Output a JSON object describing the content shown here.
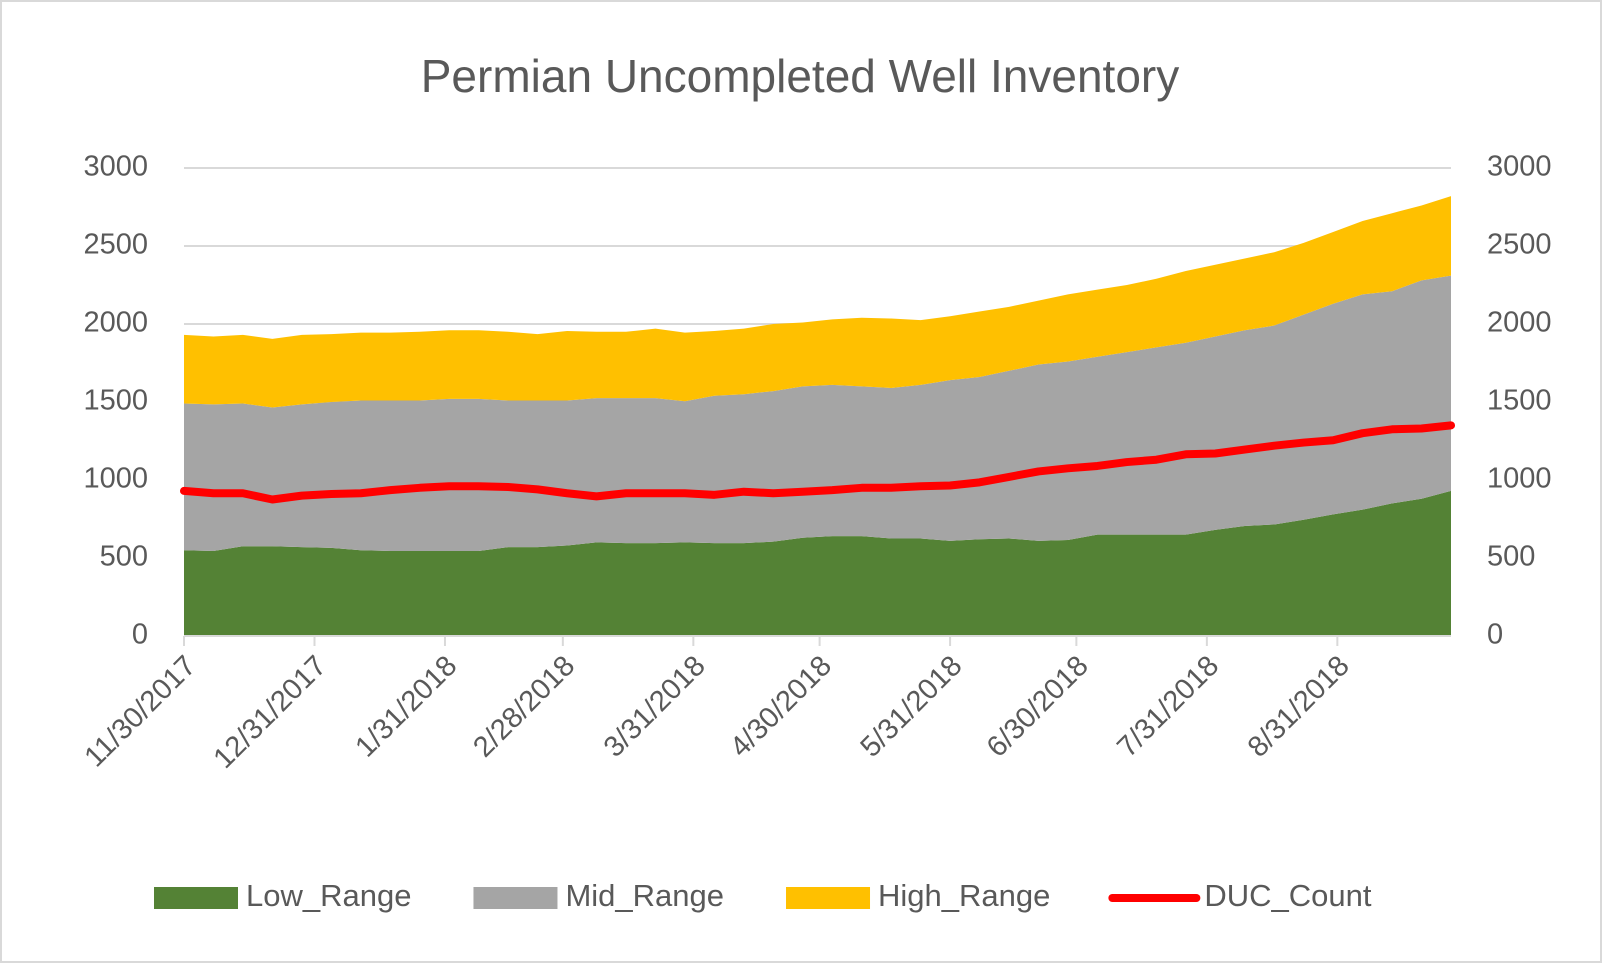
{
  "chart_data": {
    "type": "stacked_area",
    "title": "Permian Uncompleted Well Inventory",
    "x": [
      "11/30/2017",
      "12/7/2017",
      "12/14/2017",
      "12/21/2017",
      "12/28/2017",
      "1/4/2018",
      "1/11/2018",
      "1/18/2018",
      "1/25/2018",
      "2/1/2018",
      "2/8/2018",
      "2/15/2018",
      "2/22/2018",
      "3/1/2018",
      "3/8/2018",
      "3/15/2018",
      "3/22/2018",
      "3/29/2018",
      "4/5/2018",
      "4/12/2018",
      "4/19/2018",
      "4/26/2018",
      "5/3/2018",
      "5/10/2018",
      "5/17/2018",
      "5/24/2018",
      "5/31/2018",
      "6/7/2018",
      "6/14/2018",
      "6/21/2018",
      "6/28/2018",
      "7/5/2018",
      "7/12/2018",
      "7/19/2018",
      "7/26/2018",
      "8/2/2018",
      "8/9/2018",
      "8/16/2018",
      "8/23/2018",
      "8/30/2018",
      "9/6/2018",
      "9/13/2018",
      "9/20/2018",
      "9/27/2018"
    ],
    "xlim": [
      "11/30/2017",
      "9/27/2018"
    ],
    "xticks": [
      "11/30/2017",
      "12/31/2017",
      "1/31/2018",
      "2/28/2018",
      "3/31/2018",
      "4/30/2018",
      "5/31/2018",
      "6/30/2018",
      "7/31/2018",
      "8/31/2018"
    ],
    "ylim": [
      0,
      3000
    ],
    "yticks": [
      0,
      500,
      1000,
      1500,
      2000,
      2500,
      3000
    ],
    "y2lim": [
      0,
      3000
    ],
    "y2ticks": [
      0,
      500,
      1000,
      1500,
      2000,
      2500,
      3000
    ],
    "grid": true,
    "legend": "bottom",
    "series": [
      {
        "name": "Low_Range",
        "color": "#548235",
        "values": [
          550,
          545,
          575,
          575,
          570,
          565,
          550,
          545,
          545,
          545,
          545,
          570,
          570,
          580,
          600,
          595,
          595,
          600,
          595,
          595,
          605,
          630,
          640,
          640,
          625,
          625,
          610,
          620,
          625,
          610,
          615,
          650,
          650,
          650,
          650,
          680,
          705,
          715,
          745,
          780,
          810,
          850,
          880,
          930
        ]
      },
      {
        "name": "Mid_Range",
        "color": "#a5a5a5",
        "values": [
          940,
          940,
          915,
          890,
          915,
          935,
          960,
          965,
          965,
          975,
          975,
          940,
          940,
          930,
          925,
          930,
          930,
          905,
          945,
          955,
          965,
          970,
          970,
          960,
          965,
          985,
          1030,
          1040,
          1075,
          1130,
          1145,
          1140,
          1170,
          1200,
          1230,
          1240,
          1255,
          1275,
          1315,
          1350,
          1380,
          1360,
          1400,
          1380
        ]
      },
      {
        "name": "High_Range",
        "color": "#ffc000",
        "values": [
          440,
          435,
          440,
          440,
          445,
          435,
          435,
          435,
          440,
          440,
          440,
          440,
          425,
          445,
          425,
          425,
          445,
          440,
          415,
          420,
          430,
          410,
          420,
          440,
          445,
          415,
          410,
          420,
          410,
          410,
          430,
          430,
          430,
          440,
          460,
          460,
          460,
          470,
          460,
          460,
          470,
          500,
          480,
          510
        ]
      },
      {
        "name": "DUC_Count",
        "color": "#ff0000",
        "type": "line",
        "axis": "y2",
        "values": [
          930,
          915,
          915,
          875,
          900,
          910,
          915,
          935,
          950,
          960,
          960,
          955,
          940,
          915,
          895,
          915,
          915,
          915,
          905,
          925,
          915,
          925,
          935,
          950,
          950,
          960,
          965,
          985,
          1020,
          1055,
          1075,
          1090,
          1115,
          1130,
          1165,
          1170,
          1195,
          1220,
          1240,
          1255,
          1300,
          1325,
          1330,
          1350
        ]
      }
    ]
  }
}
